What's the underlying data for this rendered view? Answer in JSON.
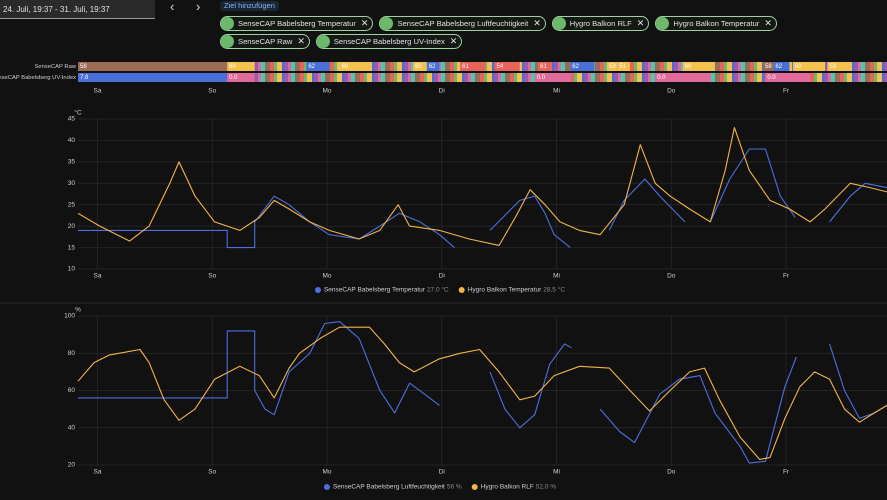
{
  "header": {
    "date_range": "24. Juli, 19:37 - 31. Juli, 19:37",
    "prev": "‹",
    "next": "›",
    "add_target": "Ziel hinzufügen",
    "chips": [
      "SenseCAP Babelsberg Temperatur",
      "SenseCAP Babelsberg Luftfeuchtigkeit",
      "Hygro Balkon RLF",
      "Hygro Balkon Temperatur",
      "SenseCAP Raw",
      "SenseCAP Babelsberg UV-Index"
    ]
  },
  "timeline": {
    "rows": [
      {
        "label": "SenseCAP Raw",
        "segments": [
          {
            "label": "58",
            "from": -0.17,
            "to": 1.13,
            "color": "#9c6b55"
          },
          {
            "label": "60",
            "from": 1.13,
            "to": 1.37,
            "color": "#f2c14e"
          },
          {
            "label": "62",
            "from": 1.82,
            "to": 2.02,
            "color": "#4a6fd8"
          },
          {
            "label": "60",
            "from": 2.11,
            "to": 2.37,
            "color": "#f2c14e"
          },
          {
            "label": "60",
            "from": 2.75,
            "to": 2.87,
            "color": "#f2c14e"
          },
          {
            "label": "62",
            "from": 2.87,
            "to": 2.98,
            "color": "#4a6fd8"
          },
          {
            "label": "61",
            "from": 3.16,
            "to": 3.38,
            "color": "#e8645a"
          },
          {
            "label": "54",
            "from": 3.46,
            "to": 3.68,
            "color": "#e8645a"
          },
          {
            "label": "61",
            "from": 3.84,
            "to": 3.96,
            "color": "#e8645a"
          },
          {
            "label": "62",
            "from": 4.12,
            "to": 4.33,
            "color": "#4a6fd8"
          },
          {
            "label": "53",
            "from": 4.44,
            "to": 4.53,
            "color": "#f2c14e"
          },
          {
            "label": "51",
            "from": 4.53,
            "to": 4.64,
            "color": "#f2c14e"
          },
          {
            "label": "60",
            "from": 5.1,
            "to": 5.38,
            "color": "#f2c14e"
          },
          {
            "label": "58",
            "from": 5.8,
            "to": 5.89,
            "color": "#9c6b55"
          },
          {
            "label": "62",
            "from": 5.89,
            "to": 6.03,
            "color": "#4a6fd8"
          },
          {
            "label": "60",
            "from": 6.06,
            "to": 6.34,
            "color": "#f2c14e"
          },
          {
            "label": "53",
            "from": 6.36,
            "to": 6.56,
            "color": "#f2c14e"
          }
        ]
      },
      {
        "label": "SenseCAP Babelsberg UV-Index",
        "segments": [
          {
            "label": "7.8",
            "from": -0.17,
            "to": 1.13,
            "color": "#4a6fd8"
          },
          {
            "label": "0.0",
            "from": 1.13,
            "to": 1.37,
            "color": "#e06a9a"
          },
          {
            "label": "0.0",
            "from": 3.81,
            "to": 4.13,
            "color": "#e06a9a"
          },
          {
            "label": "0.0",
            "from": 4.86,
            "to": 5.34,
            "color": "#e06a9a"
          },
          {
            "label": "0.0",
            "from": 5.82,
            "to": 6.21,
            "color": "#e06a9a"
          }
        ]
      }
    ]
  },
  "chart_data": [
    {
      "type": "line",
      "y_unit": "°C",
      "xlim": [
        -0.17,
        6.88
      ],
      "xticks": [
        {
          "value": 0,
          "label": "Sa"
        },
        {
          "value": 1,
          "label": "So"
        },
        {
          "value": 2,
          "label": "Mo"
        },
        {
          "value": 3,
          "label": "Di"
        },
        {
          "value": 4,
          "label": "Mi"
        },
        {
          "value": 5,
          "label": "Do"
        },
        {
          "value": 6,
          "label": "Fr"
        }
      ],
      "ylim": [
        10,
        45
      ],
      "yticks": [
        10,
        15,
        20,
        25,
        30,
        35,
        40,
        45
      ],
      "grid": true,
      "series": [
        {
          "name": "SenseCAP Babelsberg Temperatur",
          "state": "27,0 °C",
          "color": "#4d6fe0",
          "x": [
            -0.17,
            1.13,
            1.13,
            1.37,
            1.37,
            1.54,
            1.67,
            1.85,
            2.02,
            2.28,
            2.46,
            2.63,
            2.81,
            2.98,
            3.11,
            3.24,
            3.42,
            3.68,
            3.81,
            3.9,
            3.98,
            4.12,
            4.3,
            4.46,
            4.59,
            4.77,
            4.9,
            5.12,
            5.25,
            5.34,
            5.51,
            5.68,
            5.82,
            5.95,
            6.08,
            6.25,
            6.38,
            6.56,
            6.69,
            6.88
          ],
          "values": [
            19,
            19,
            15,
            15,
            21,
            27,
            25,
            21,
            18,
            17,
            20,
            23,
            21,
            18,
            15,
            null,
            19,
            26,
            27,
            23,
            18,
            15,
            null,
            19,
            26,
            31,
            27,
            21,
            null,
            21,
            31,
            38,
            38,
            27,
            22,
            null,
            21,
            27,
            30,
            29
          ]
        },
        {
          "name": "Hygro Balkon Temperatur",
          "state": "28,5 °C",
          "color": "#f2b44a",
          "x": [
            -0.17,
            0.02,
            0.28,
            0.45,
            0.63,
            0.71,
            0.85,
            1.02,
            1.24,
            1.41,
            1.54,
            1.67,
            1.85,
            2.02,
            2.28,
            2.46,
            2.62,
            2.72,
            2.98,
            3.24,
            3.5,
            3.64,
            3.77,
            3.9,
            4.03,
            4.2,
            4.38,
            4.59,
            4.73,
            4.86,
            4.99,
            5.16,
            5.34,
            5.47,
            5.55,
            5.68,
            5.86,
            6.03,
            6.21,
            6.34,
            6.56,
            6.73,
            6.88
          ],
          "values": [
            23,
            20,
            16.5,
            20,
            30,
            35,
            27,
            21,
            19,
            22,
            26,
            24,
            21,
            19,
            17,
            19,
            25,
            20,
            19,
            17,
            15.5,
            22,
            28.5,
            25,
            21,
            19,
            18,
            25,
            39,
            30,
            27,
            24,
            21,
            33,
            43,
            33,
            26,
            24,
            21,
            24,
            30,
            29,
            28
          ]
        }
      ]
    },
    {
      "type": "line",
      "y_unit": "%",
      "xlim": [
        -0.17,
        6.88
      ],
      "xticks": [
        {
          "value": 0,
          "label": "Sa"
        },
        {
          "value": 1,
          "label": "So"
        },
        {
          "value": 2,
          "label": "Mo"
        },
        {
          "value": 3,
          "label": "Di"
        },
        {
          "value": 4,
          "label": "Mi"
        },
        {
          "value": 5,
          "label": "Do"
        },
        {
          "value": 6,
          "label": "Fr"
        }
      ],
      "ylim": [
        20,
        100
      ],
      "yticks": [
        20,
        40,
        60,
        80,
        100
      ],
      "grid": true,
      "series": [
        {
          "name": "SenseCAP Babelsberg Luftfeuchtigkeit",
          "state": "56 %",
          "color": "#4d6fe0",
          "x": [
            -0.17,
            1.13,
            1.13,
            1.37,
            1.37,
            1.46,
            1.54,
            1.67,
            1.85,
            1.98,
            2.11,
            2.28,
            2.46,
            2.59,
            2.72,
            2.85,
            2.98,
            3.24,
            3.42,
            3.55,
            3.68,
            3.81,
            3.94,
            4.07,
            4.13,
            4.3,
            4.38,
            4.55,
            4.68,
            4.9,
            5.07,
            5.25,
            5.38,
            5.6,
            5.68,
            5.82,
            5.99,
            6.09,
            6.25,
            6.38,
            6.51,
            6.64,
            6.77,
            6.88
          ],
          "values": [
            56,
            56,
            92,
            92,
            60,
            50,
            47,
            70,
            80,
            96,
            97,
            88,
            60,
            48,
            64,
            58,
            52,
            null,
            70,
            50,
            40,
            47,
            74,
            85,
            83,
            null,
            50,
            38,
            32,
            58,
            66,
            68,
            48,
            30,
            21,
            22,
            62,
            78,
            null,
            85,
            60,
            45,
            48,
            52
          ]
        },
        {
          "name": "Hygro Balkon RLF",
          "state": "52,0 %",
          "color": "#f2b44a",
          "x": [
            -0.17,
            -0.03,
            0.1,
            0.37,
            0.45,
            0.58,
            0.71,
            0.85,
            1.02,
            1.24,
            1.41,
            1.54,
            1.67,
            1.76,
            1.94,
            2.11,
            2.37,
            2.5,
            2.63,
            2.76,
            2.98,
            3.16,
            3.33,
            3.5,
            3.68,
            3.81,
            3.98,
            4.2,
            4.46,
            4.64,
            4.81,
            4.99,
            5.16,
            5.29,
            5.42,
            5.6,
            5.77,
            5.86,
            5.99,
            6.12,
            6.25,
            6.38,
            6.51,
            6.64,
            6.77,
            6.88
          ],
          "values": [
            65,
            75,
            79,
            82,
            75,
            55,
            44,
            50,
            66,
            73,
            68,
            56,
            72,
            80,
            88,
            94,
            94,
            85,
            75,
            70,
            77,
            80,
            82,
            70,
            55,
            57,
            68,
            73,
            72,
            60,
            49,
            60,
            70,
            72,
            55,
            35,
            23,
            24,
            45,
            62,
            70,
            66,
            50,
            43,
            48,
            52
          ]
        }
      ]
    }
  ]
}
